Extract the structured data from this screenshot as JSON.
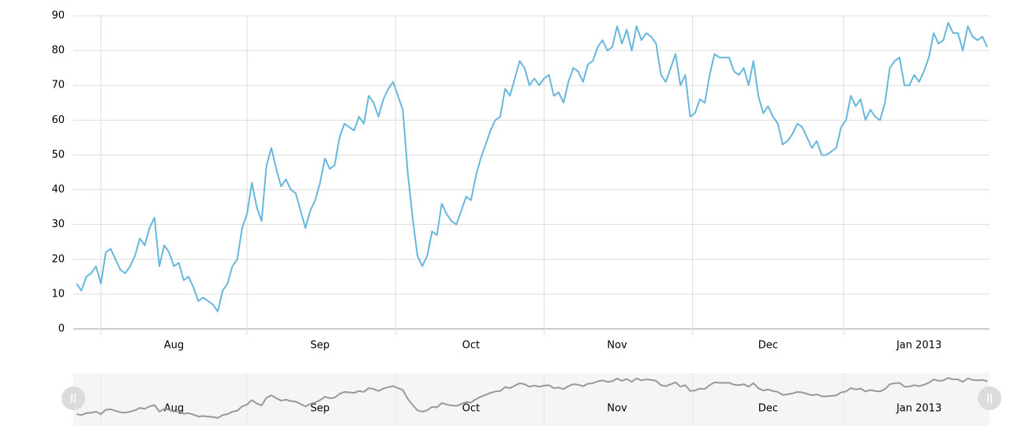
{
  "chart_data": {
    "type": "line",
    "categories": [
      null,
      null,
      null,
      null,
      null,
      null,
      null,
      null,
      null,
      null,
      null,
      null,
      null,
      null,
      null,
      null,
      null,
      null,
      null,
      null,
      "Aug",
      null,
      null,
      null,
      null,
      null,
      null,
      null,
      null,
      null,
      null,
      null,
      null,
      null,
      null,
      null,
      null,
      null,
      null,
      null,
      null,
      null,
      null,
      null,
      null,
      null,
      null,
      null,
      null,
      null,
      "Sep",
      null,
      null,
      null,
      null,
      null,
      null,
      null,
      null,
      null,
      null,
      null,
      null,
      null,
      null,
      null,
      null,
      null,
      null,
      null,
      null,
      null,
      null,
      null,
      null,
      null,
      null,
      null,
      null,
      null,
      null,
      "Oct",
      null,
      null,
      null,
      null,
      null,
      null,
      null,
      null,
      null,
      null,
      null,
      null,
      null,
      null,
      null,
      null,
      null,
      null,
      null,
      null,
      null,
      null,
      null,
      null,
      null,
      null,
      null,
      null,
      null,
      "Nov",
      null,
      null,
      null,
      null,
      null,
      null,
      null,
      null,
      null,
      null,
      null,
      null,
      null,
      null,
      null,
      null,
      null,
      null,
      null,
      null,
      null,
      null,
      null,
      null,
      null,
      null,
      null,
      null,
      null,
      null,
      "Dec",
      null,
      null,
      null,
      null,
      null,
      null,
      null,
      null,
      null,
      null,
      null,
      null,
      null,
      null,
      null,
      null,
      null,
      null,
      null,
      null,
      null,
      null,
      null,
      null,
      null,
      null,
      null,
      null,
      null,
      null,
      "Jan 2013",
      null,
      null,
      null,
      null,
      null,
      null,
      null,
      null,
      null,
      null,
      null,
      null,
      null,
      null
    ],
    "series": [
      {
        "color": "#67b7dc",
        "values": [
          13,
          11,
          15,
          16,
          18,
          13,
          22,
          23,
          20,
          17,
          16,
          18,
          21,
          26,
          24,
          29,
          32,
          18,
          24,
          22,
          18,
          19,
          14,
          15,
          12,
          8,
          9,
          8,
          7,
          5,
          11,
          13,
          18,
          20,
          29,
          33,
          42,
          35,
          31,
          47,
          52,
          46,
          41,
          43,
          40,
          39,
          34,
          29,
          34,
          37,
          42,
          49,
          46,
          47,
          55,
          59,
          58,
          57,
          61,
          59,
          67,
          65,
          61,
          66,
          69,
          71,
          67,
          63,
          45,
          32,
          21,
          18,
          21,
          28,
          27,
          36,
          33,
          31,
          30,
          34,
          38,
          37,
          44,
          49,
          53,
          57,
          60,
          61,
          69,
          67,
          72,
          77,
          75,
          70,
          72,
          70,
          72,
          73,
          67,
          68,
          65,
          71,
          75,
          74,
          71,
          76,
          77,
          81,
          83,
          80,
          81,
          87,
          82,
          86,
          80,
          87,
          83,
          85,
          84,
          82,
          73,
          71,
          75,
          79,
          70,
          73,
          61,
          62,
          66,
          65,
          73,
          79,
          78,
          78,
          78,
          74,
          73,
          75,
          70,
          77,
          67,
          62,
          64,
          61,
          59,
          53,
          54,
          56,
          59,
          58,
          55,
          52,
          54,
          50,
          50,
          51,
          52,
          58,
          60,
          67,
          64,
          66,
          60,
          63,
          61,
          60,
          65,
          75,
          77,
          78,
          70,
          70,
          73,
          71,
          74,
          78,
          85,
          82,
          83,
          88,
          85,
          85,
          80,
          87,
          84,
          83,
          84,
          81
        ]
      }
    ],
    "ylim": [
      0,
      90
    ],
    "yticks": [
      0,
      10,
      20,
      30,
      40,
      50,
      60,
      70,
      80,
      90
    ],
    "grid": true,
    "scrollbar_color": "#999999"
  }
}
